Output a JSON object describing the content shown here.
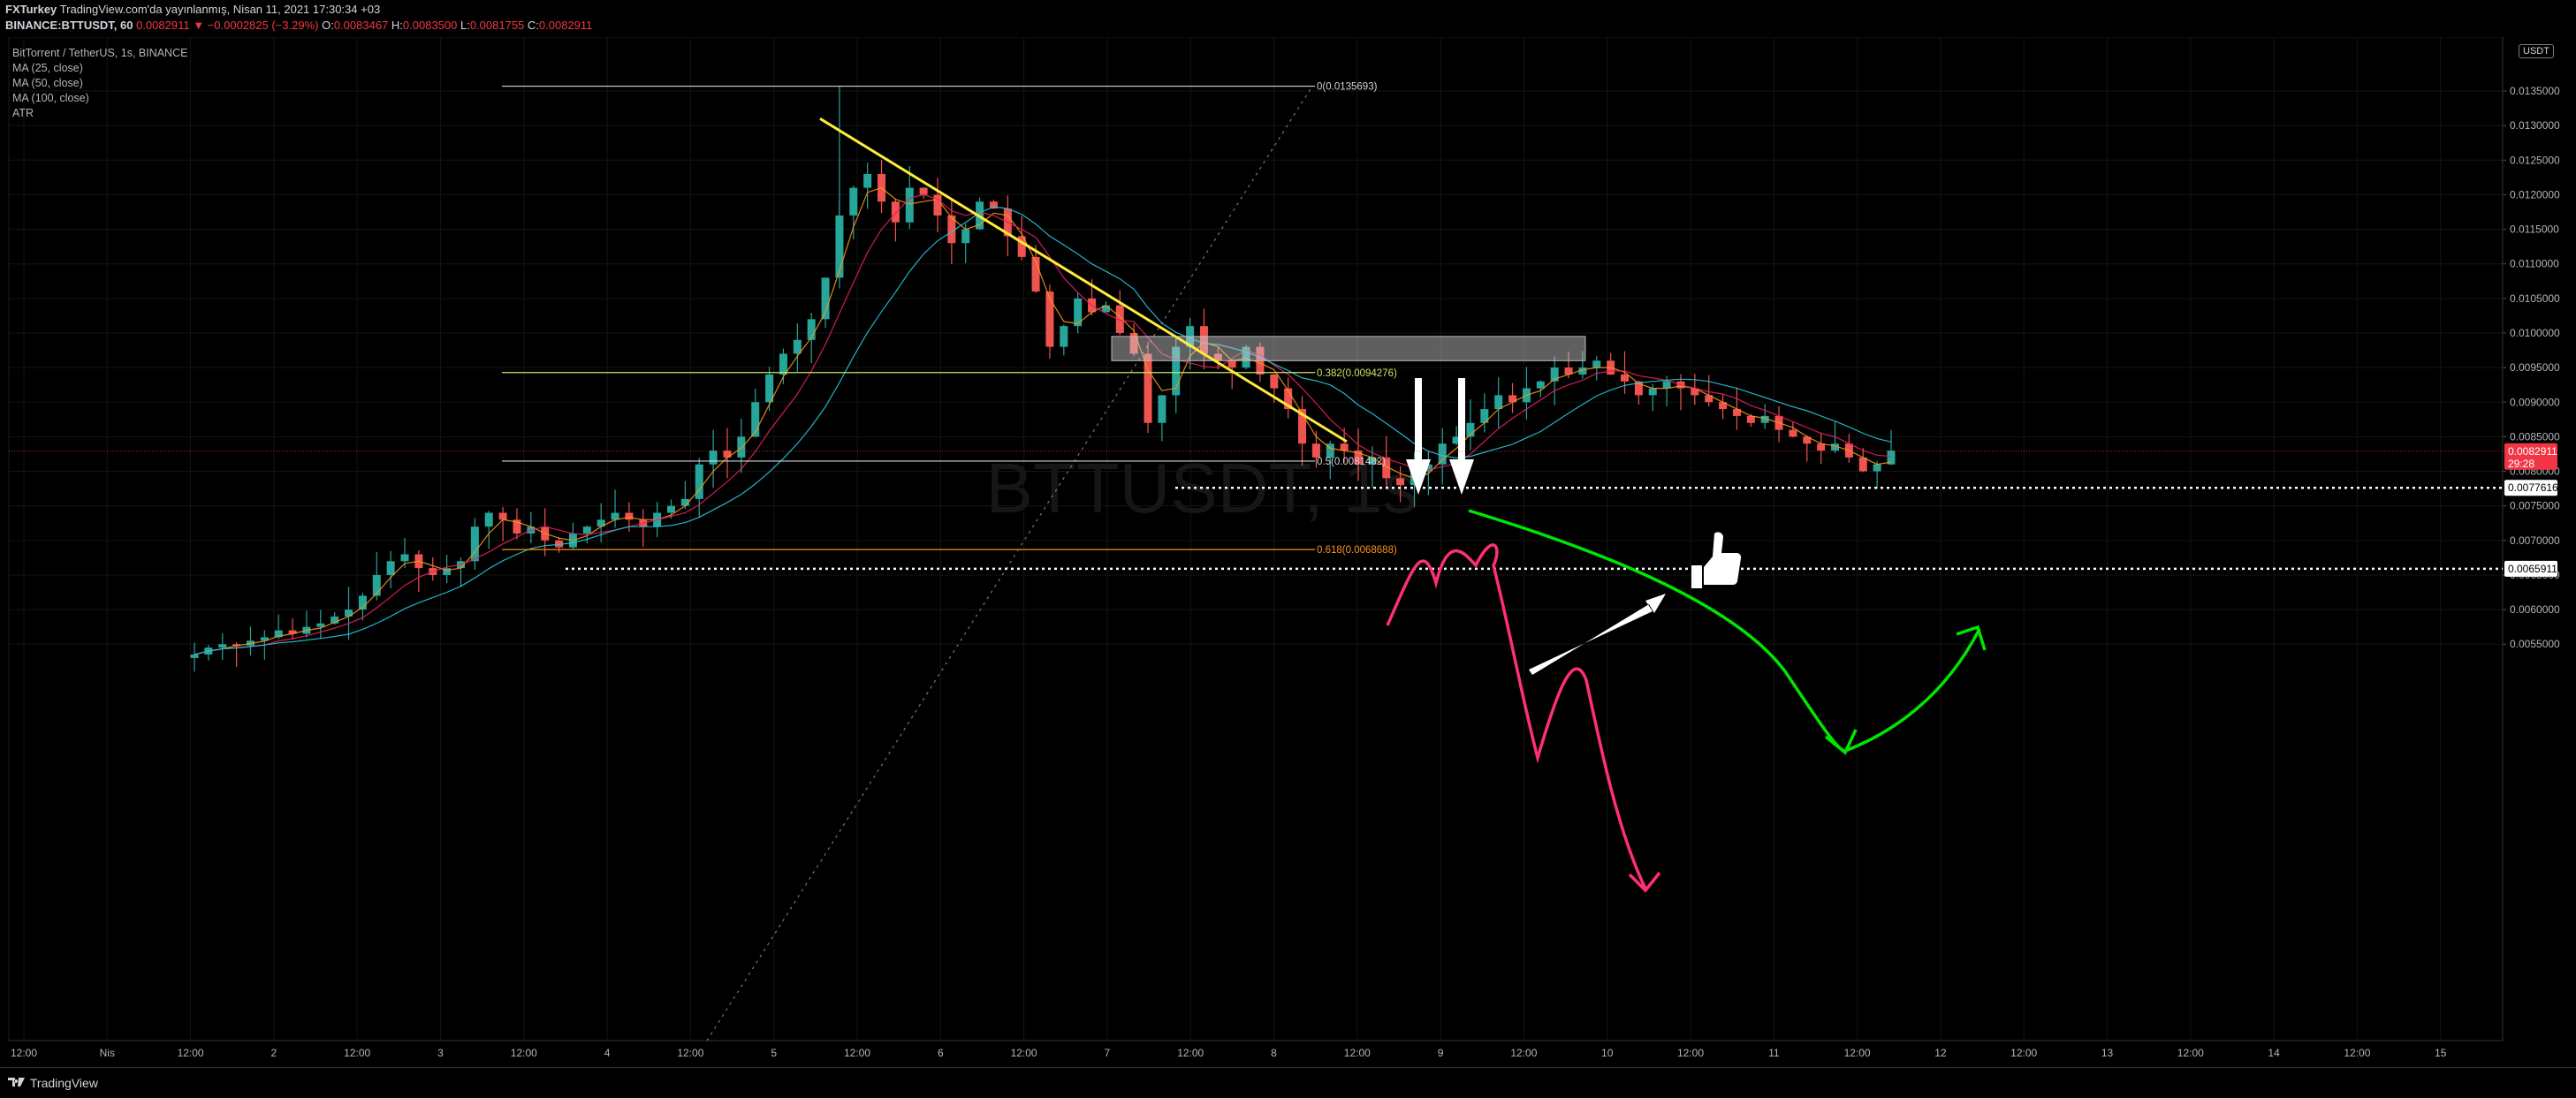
{
  "header": {
    "line1_user": "FXTurkey",
    "line1_rest": "TradingView.com'da yayınlanmış, Nisan 11, 2021 17:30:34 +03",
    "line2_symbol": "BINANCE:BTTUSDT, 60",
    "line2_last": "0.0082911",
    "line2_change": "▼ −0.0002825 (−3.29%)",
    "line2_o_label": "O:",
    "line2_o": "0.0083467",
    "line2_h_label": "H:",
    "line2_h": "0.0083500",
    "line2_l_label": "L:",
    "line2_l": "0.0081755",
    "line2_c_label": "C:",
    "line2_c": "0.0082911"
  },
  "legend": {
    "title": "BitTorrent / TetherUS, 1s, BINANCE",
    "ma25": "MA (25, close)",
    "ma50": "MA (50, close)",
    "ma100": "MA (100, close)",
    "atr": "ATR"
  },
  "watermark": "BTTUSDT, 1s",
  "unit_label": "USDT",
  "footer": {
    "brand": "TradingView"
  },
  "colors": {
    "background": "#000000",
    "up_candle": "#26a69a",
    "down_candle": "#ef5350",
    "ma25": "#f7931a",
    "ma50": "#e91e63",
    "ma100": "#26c6da",
    "trendline": "#ffeb3b",
    "green_arrow": "#00e600",
    "pink_arrow": "#ff2e7a",
    "grid": "#141414"
  },
  "chart_data": {
    "type": "candlestick",
    "symbol": "BINANCE:BTTUSDT",
    "timeframe": "60",
    "y_axis": {
      "ticks": [
        "0.0135000",
        "0.0130000",
        "0.0125000",
        "0.0120000",
        "0.0115000",
        "0.0110000",
        "0.0105000",
        "0.0100000",
        "0.0095000",
        "0.0090000",
        "0.0085000",
        "0.0080000",
        "0.0075000",
        "0.0070000",
        "0.0065000",
        "0.0060000",
        "0.0055000"
      ],
      "range": [
        0.0053,
        0.0138
      ]
    },
    "x_axis": {
      "ticks": [
        "12:00",
        "Nis",
        "12:00",
        "2",
        "12:00",
        "3",
        "12:00",
        "4",
        "12:00",
        "5",
        "12:00",
        "6",
        "12:00",
        "7",
        "12:00",
        "8",
        "12:00",
        "9",
        "12:00",
        "10",
        "12:00",
        "11",
        "12:00",
        "12",
        "12:00",
        "13",
        "12:00",
        "14",
        "12:00",
        "15"
      ]
    },
    "price_labels": {
      "last": "0.0082911",
      "countdown": "29:28",
      "level_high": "0.0077616",
      "level_low": "0.0065911"
    },
    "fibonacci": [
      {
        "label": "0(0.0135693)",
        "value": 0.0135693
      },
      {
        "label": "0.382(0.0094276)",
        "value": 0.0094276
      },
      {
        "label": "0.5(0.0081482)",
        "value": 0.0081482
      },
      {
        "label": "0.618(0.0068688)",
        "value": 0.0068688
      }
    ],
    "resistance_zone": [
      0.0096,
      0.00995
    ],
    "horizontal_levels": [
      0.0077616,
      0.0065911
    ],
    "trendline": [
      [
        0.0131
      ],
      [
        0.00843
      ]
    ],
    "close_path": [
      0.00535,
      0.00545,
      0.0055,
      0.00548,
      0.00555,
      0.0056,
      0.0057,
      0.00565,
      0.00575,
      0.0058,
      0.0059,
      0.006,
      0.0062,
      0.0065,
      0.0067,
      0.0068,
      0.0066,
      0.0065,
      0.0066,
      0.0067,
      0.0072,
      0.0074,
      0.0073,
      0.0071,
      0.0072,
      0.007,
      0.0069,
      0.0071,
      0.0072,
      0.0073,
      0.0074,
      0.0073,
      0.0072,
      0.0074,
      0.0075,
      0.0076,
      0.0081,
      0.0083,
      0.0082,
      0.0085,
      0.009,
      0.0094,
      0.0097,
      0.0099,
      0.0102,
      0.0108,
      0.0117,
      0.0121,
      0.0123,
      0.0119,
      0.0116,
      0.0121,
      0.012,
      0.0117,
      0.0113,
      0.0115,
      0.0119,
      0.0118,
      0.0114,
      0.0111,
      0.0106,
      0.0098,
      0.0101,
      0.0105,
      0.0103,
      0.0104,
      0.01,
      0.0097,
      0.0087,
      0.0091,
      0.0098,
      0.0101,
      0.0097,
      0.0096,
      0.0095,
      0.0098,
      0.0094,
      0.0092,
      0.0089,
      0.0084,
      0.0082,
      0.0084,
      0.0083,
      0.0081,
      0.0082,
      0.0079,
      0.0078,
      0.008,
      0.0081,
      0.0084,
      0.0085,
      0.0087,
      0.0089,
      0.0091,
      0.009,
      0.0092,
      0.0093,
      0.0095,
      0.0094,
      0.0095,
      0.0096,
      0.0094,
      0.0093,
      0.0091,
      0.0092,
      0.0093,
      0.0092,
      0.0091,
      0.009,
      0.0089,
      0.0088,
      0.0087,
      0.0088,
      0.0086,
      0.0085,
      0.0084,
      0.0083,
      0.0084,
      0.0082,
      0.008,
      0.0081,
      0.0083
    ]
  }
}
